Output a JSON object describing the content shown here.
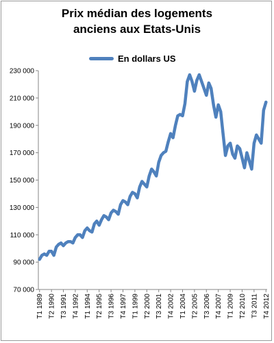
{
  "chart_data": {
    "type": "line",
    "title_line1": "Prix médian des logements",
    "title_line2": "anciens aux Etats-Unis",
    "xlabel": "",
    "ylabel": "",
    "ylim": [
      70000,
      230000
    ],
    "y_ticks": [
      70000,
      90000,
      110000,
      130000,
      150000,
      170000,
      190000,
      210000,
      230000
    ],
    "y_tick_labels": [
      "70 000",
      "90 000",
      "110 000",
      "130 000",
      "150 000",
      "170 000",
      "190 000",
      "210 000",
      "230 000"
    ],
    "x_tick_labels": [
      "T1 1989",
      "T2 1990",
      "T3 1991",
      "T4 1992",
      "T1 1994",
      "T2 1995",
      "T3 1996",
      "T4 1997",
      "T1 1999",
      "T2 2000",
      "T3 2001",
      "T4 2002",
      "T1 2004",
      "T2 2005",
      "T3 2006",
      "T4 2007",
      "T1 2009",
      "T2 2010",
      "T3 2011",
      "T4 2012"
    ],
    "legend_position": "top",
    "grid": false,
    "color": "#4f81bd",
    "series": [
      {
        "name": "En dollars US",
        "values": [
          92000,
          95000,
          96000,
          95000,
          98000,
          98000,
          95000,
          101000,
          103000,
          104000,
          102000,
          104000,
          105000,
          105000,
          104000,
          108000,
          110000,
          110000,
          108000,
          113000,
          115000,
          113000,
          112000,
          118000,
          120000,
          117000,
          121000,
          124000,
          123000,
          121000,
          126000,
          128000,
          127000,
          125000,
          132000,
          135000,
          134000,
          132000,
          138000,
          141000,
          140000,
          137000,
          145000,
          149000,
          147000,
          145000,
          153000,
          158000,
          156000,
          153000,
          163000,
          168000,
          170000,
          171000,
          178000,
          184000,
          181000,
          190000,
          197000,
          198000,
          197000,
          206000,
          222000,
          227000,
          222000,
          215000,
          223000,
          227000,
          222000,
          217000,
          212000,
          221000,
          217000,
          205000,
          196000,
          205000,
          200000,
          184000,
          168000,
          175000,
          177000,
          169000,
          166000,
          175000,
          173000,
          166000,
          159000,
          170000,
          164000,
          158000,
          177000,
          183000,
          180000,
          177000,
          201000,
          207000
        ]
      }
    ]
  }
}
